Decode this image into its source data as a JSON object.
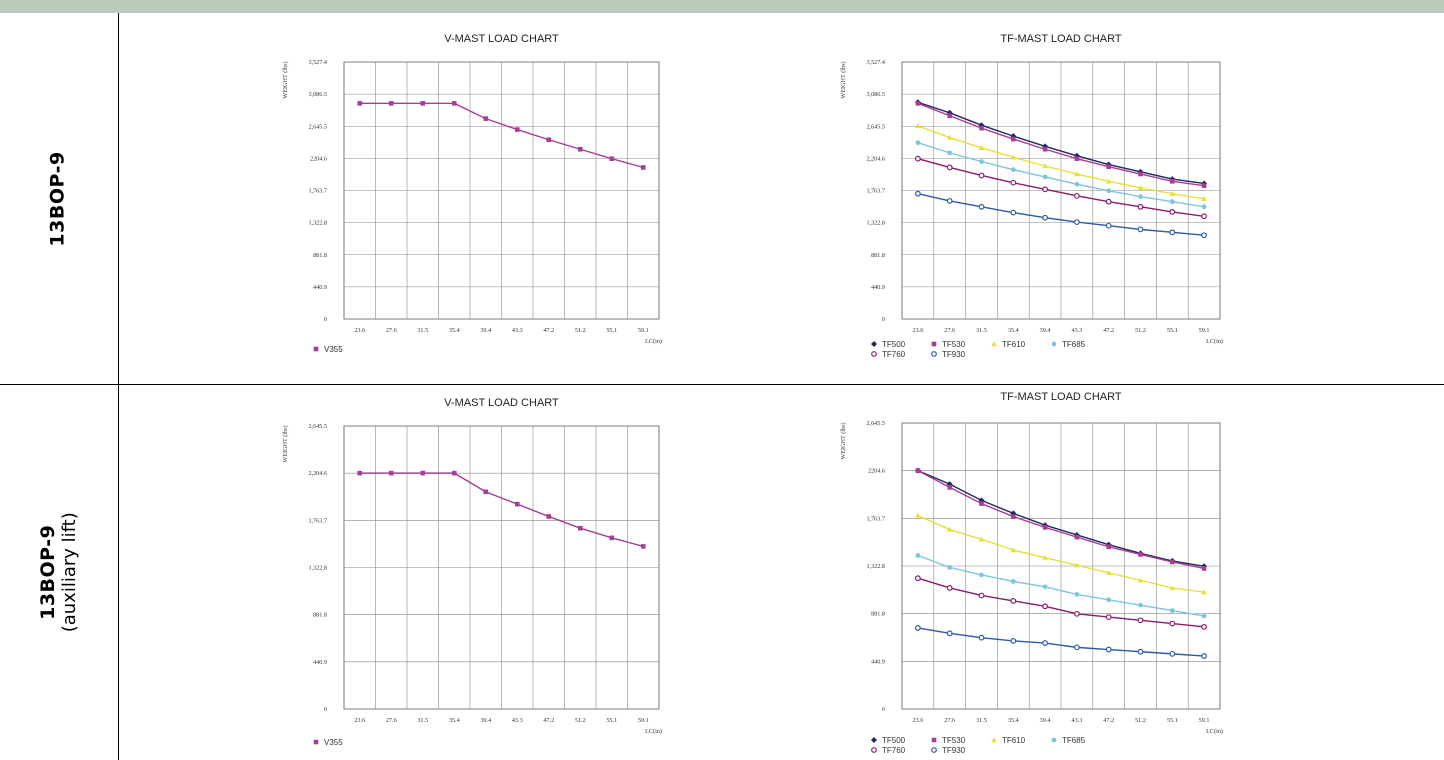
{
  "rows": [
    {
      "label": "13BOP-9",
      "sublabel": ""
    },
    {
      "label": "13BOP-9",
      "sublabel": "(auxiliary lift)"
    }
  ],
  "chart_data": [
    {
      "type": "line",
      "title": "V-MAST LOAD CHART",
      "xlabel": "LC(in)",
      "ylabel": "WEIGHT (lbs)",
      "x": [
        23.6,
        27.6,
        31.5,
        35.4,
        39.4,
        43.3,
        47.2,
        51.2,
        55.1,
        59.1
      ],
      "x_ticks": [
        "23.6",
        "27.6",
        "31.5",
        "35.4",
        "39.4",
        "43.3",
        "47.2",
        "51.2",
        "55.1",
        "59.1"
      ],
      "y_ticks": [
        "0",
        "440.9",
        "881.8",
        "1,322.8",
        "1,763.7",
        "2204.6",
        "2,645.5",
        "3,086.5",
        "3,527.4"
      ],
      "ylim": [
        0,
        3527.4
      ],
      "grid": true,
      "legend_position": "bottom-left",
      "series": [
        {
          "name": "V355",
          "color": "#a63d96",
          "marker": "square",
          "values": [
            2960,
            2960,
            2960,
            2960,
            2750,
            2600,
            2460,
            2330,
            2200,
            2080
          ]
        }
      ]
    },
    {
      "type": "line",
      "title": "TF-MAST LOAD CHART",
      "xlabel": "LC(in)",
      "ylabel": "WEIGHT (lbs)",
      "x": [
        23.6,
        27.6,
        31.5,
        35.4,
        39.4,
        43.3,
        47.2,
        51.2,
        55.1,
        59.1
      ],
      "x_ticks": [
        "23.6",
        "27.6",
        "31.5",
        "35.4",
        "39.4",
        "43.3",
        "47.2",
        "51.2",
        "55.1",
        "59.1"
      ],
      "y_ticks": [
        "0",
        "440.9",
        "881.8",
        "1,322.8",
        "1,763.7",
        "2,204.6",
        "2,645.5",
        "3,086.5",
        "3,527.4"
      ],
      "ylim": [
        0,
        3527.4
      ],
      "grid": true,
      "legend_position": "bottom-left",
      "series": [
        {
          "name": "TF500",
          "color": "#1f2a5c",
          "marker": "diamond",
          "values": [
            2975,
            2830,
            2660,
            2510,
            2370,
            2240,
            2120,
            2020,
            1920,
            1860
          ]
        },
        {
          "name": "TF530",
          "color": "#a63d96",
          "marker": "square",
          "values": [
            2960,
            2790,
            2620,
            2470,
            2330,
            2200,
            2090,
            1990,
            1890,
            1830
          ]
        },
        {
          "name": "TF610",
          "color": "#e6e03a",
          "marker": "triangle",
          "values": [
            2650,
            2490,
            2350,
            2220,
            2100,
            1990,
            1890,
            1800,
            1720,
            1650
          ]
        },
        {
          "name": "TF685",
          "color": "#7cc6e0",
          "marker": "circle",
          "values": [
            2420,
            2280,
            2160,
            2050,
            1950,
            1850,
            1760,
            1680,
            1610,
            1540
          ]
        },
        {
          "name": "TF760",
          "color": "#8a1c6c",
          "marker": "circle-open",
          "values": [
            2200,
            2080,
            1970,
            1870,
            1780,
            1690,
            1610,
            1540,
            1470,
            1410
          ]
        },
        {
          "name": "TF930",
          "color": "#2b5aa8",
          "marker": "circle-open",
          "values": [
            1720,
            1620,
            1540,
            1460,
            1390,
            1330,
            1280,
            1230,
            1190,
            1150
          ]
        }
      ]
    },
    {
      "type": "line",
      "title": "V-MAST LOAD CHART",
      "xlabel": "LC(in)",
      "ylabel": "WEIGHT (lbs)",
      "x": [
        23.6,
        27.6,
        31.5,
        35.4,
        39.4,
        43.3,
        47.2,
        51.2,
        55.1,
        59.1
      ],
      "x_ticks": [
        "23.6",
        "27.6",
        "31.5",
        "35.4",
        "39.4",
        "43.3",
        "47.2",
        "51.2",
        "55.1",
        "59.1"
      ],
      "y_ticks": [
        "0",
        "440.9",
        "881.8",
        "1,322.8",
        "1,763.7",
        "2,204.6",
        "2,645.5"
      ],
      "ylim": [
        0,
        2645.5
      ],
      "grid": true,
      "legend_position": "bottom-left",
      "series": [
        {
          "name": "V355",
          "color": "#a63d96",
          "marker": "square",
          "values": [
            2205,
            2205,
            2205,
            2205,
            2030,
            1915,
            1800,
            1690,
            1600,
            1520
          ]
        }
      ]
    },
    {
      "type": "line",
      "title": "TF-MAST LOAD CHART",
      "xlabel": "LC(in)",
      "ylabel": "WEIGHT (lbs)",
      "x": [
        23.6,
        27.6,
        31.5,
        35.4,
        39.4,
        43.3,
        47.2,
        51.2,
        55.1,
        59.1
      ],
      "x_ticks": [
        "23.6",
        "27.6",
        "31.5",
        "35.4",
        "39.4",
        "43.3",
        "47.2",
        "51.2",
        "55.1",
        "59.1"
      ],
      "y_ticks": [
        "0",
        "440.9",
        "881.8",
        "1,322.8",
        "1,763.7",
        "2204.6",
        "2,645.5"
      ],
      "ylim": [
        0,
        2645.5
      ],
      "grid": true,
      "legend_position": "bottom-left",
      "series": [
        {
          "name": "TF500",
          "color": "#1f2a5c",
          "marker": "diamond",
          "values": [
            2205,
            2080,
            1930,
            1810,
            1700,
            1610,
            1520,
            1440,
            1370,
            1320
          ]
        },
        {
          "name": "TF530",
          "color": "#a63d96",
          "marker": "square",
          "values": [
            2205,
            2050,
            1900,
            1780,
            1680,
            1590,
            1500,
            1430,
            1360,
            1300
          ]
        },
        {
          "name": "TF610",
          "color": "#e6e03a",
          "marker": "triangle",
          "values": [
            1790,
            1660,
            1570,
            1470,
            1400,
            1330,
            1260,
            1190,
            1120,
            1080
          ]
        },
        {
          "name": "TF685",
          "color": "#7cc6e0",
          "marker": "circle",
          "values": [
            1420,
            1310,
            1240,
            1180,
            1130,
            1060,
            1010,
            960,
            910,
            860
          ]
        },
        {
          "name": "TF760",
          "color": "#8a1c6c",
          "marker": "circle-open",
          "values": [
            1210,
            1120,
            1050,
            1000,
            950,
            880,
            850,
            820,
            790,
            760
          ]
        },
        {
          "name": "TF930",
          "color": "#2b5aa8",
          "marker": "circle-open",
          "values": [
            750,
            700,
            660,
            630,
            610,
            570,
            550,
            530,
            510,
            490
          ]
        }
      ]
    }
  ]
}
